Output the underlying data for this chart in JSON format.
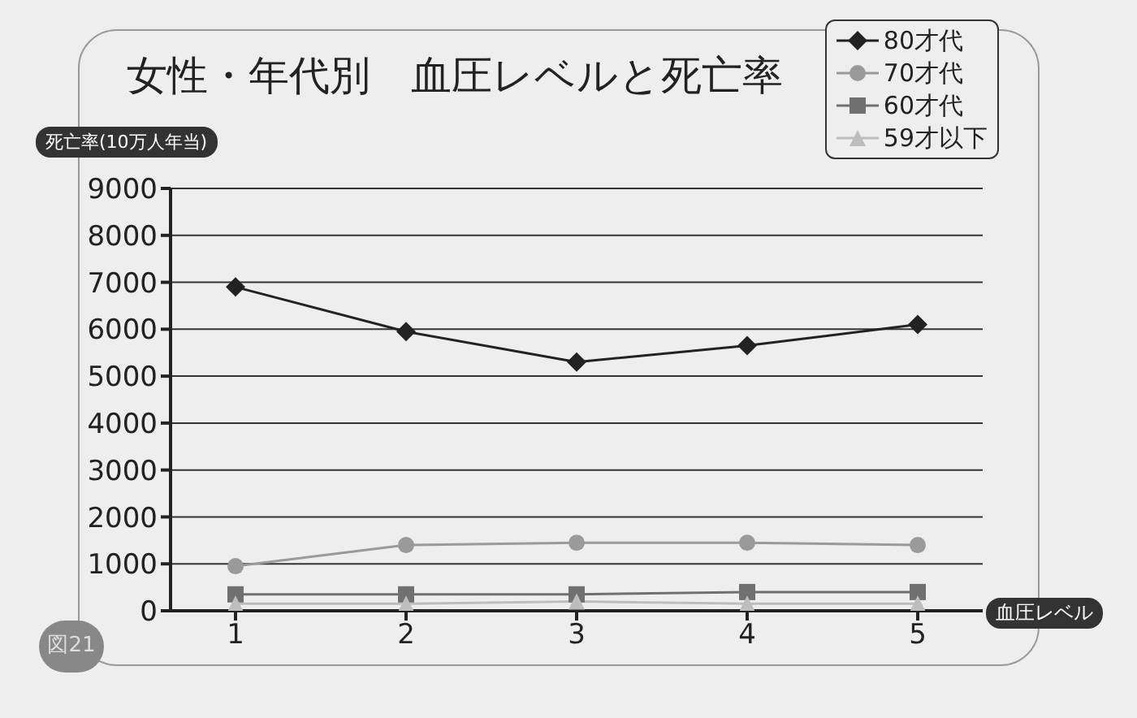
{
  "chart_data": {
    "type": "line",
    "title": "女性・年代別　血圧レベルと死亡率",
    "xlabel": "血圧レベル",
    "ylabel": "死亡率(10万人年当)",
    "annotations": [
      "図21"
    ],
    "categories": [
      "1",
      "2",
      "3",
      "4",
      "5"
    ],
    "series": [
      {
        "name": "80才代",
        "color": "#222222",
        "marker": "diamond",
        "values": [
          6900,
          5950,
          5300,
          5650,
          6100
        ]
      },
      {
        "name": "70才代",
        "color": "#9a9a9a",
        "marker": "circle",
        "values": [
          950,
          1400,
          1450,
          1450,
          1400
        ]
      },
      {
        "name": "60才代",
        "color": "#707070",
        "marker": "square",
        "values": [
          350,
          350,
          350,
          400,
          400
        ]
      },
      {
        "name": "59才以下",
        "color": "#bdbdbd",
        "marker": "triangle",
        "values": [
          150,
          150,
          200,
          150,
          150
        ]
      }
    ],
    "ylim": [
      0,
      9000
    ],
    "yticks": [
      0,
      1000,
      2000,
      3000,
      4000,
      5000,
      6000,
      7000,
      8000,
      9000
    ],
    "grid": "y",
    "legend": "top right"
  }
}
